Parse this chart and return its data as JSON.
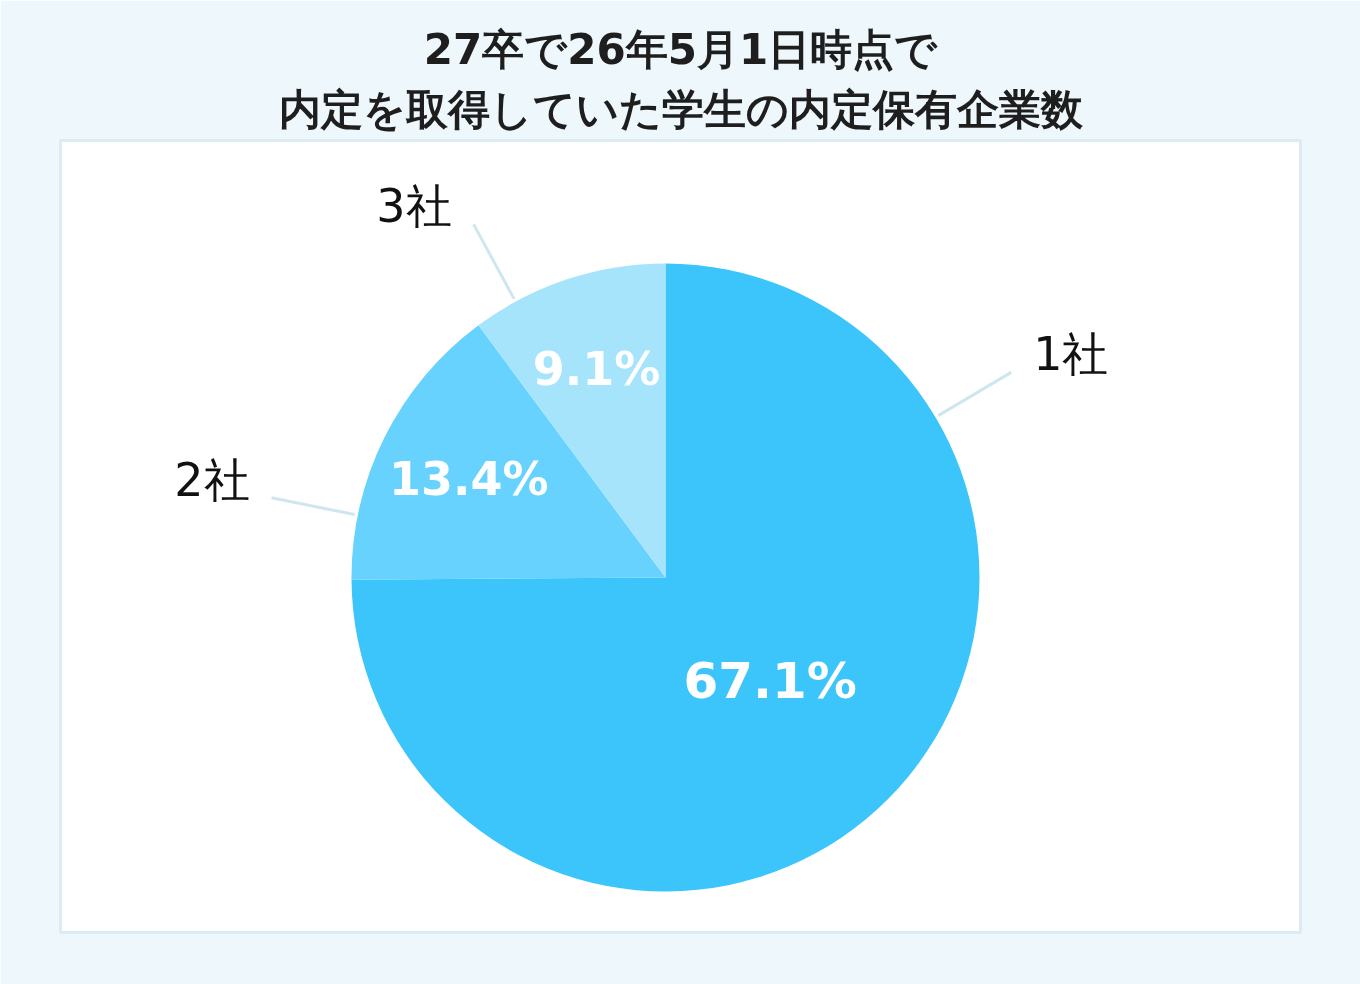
{
  "chart_data": {
    "type": "pie",
    "title": "27卒で26年5月1日時点で",
    "subtitle": "内定を取得していた学生の内定保有企業数",
    "categories": [
      "1社",
      "2社",
      "3社"
    ],
    "values": [
      67.1,
      13.4,
      9.1
    ],
    "value_labels": [
      "67.1%",
      "13.4%",
      "9.1%"
    ],
    "colors": [
      "#3cc5fa",
      "#66d2fd",
      "#a6e4fc"
    ]
  }
}
